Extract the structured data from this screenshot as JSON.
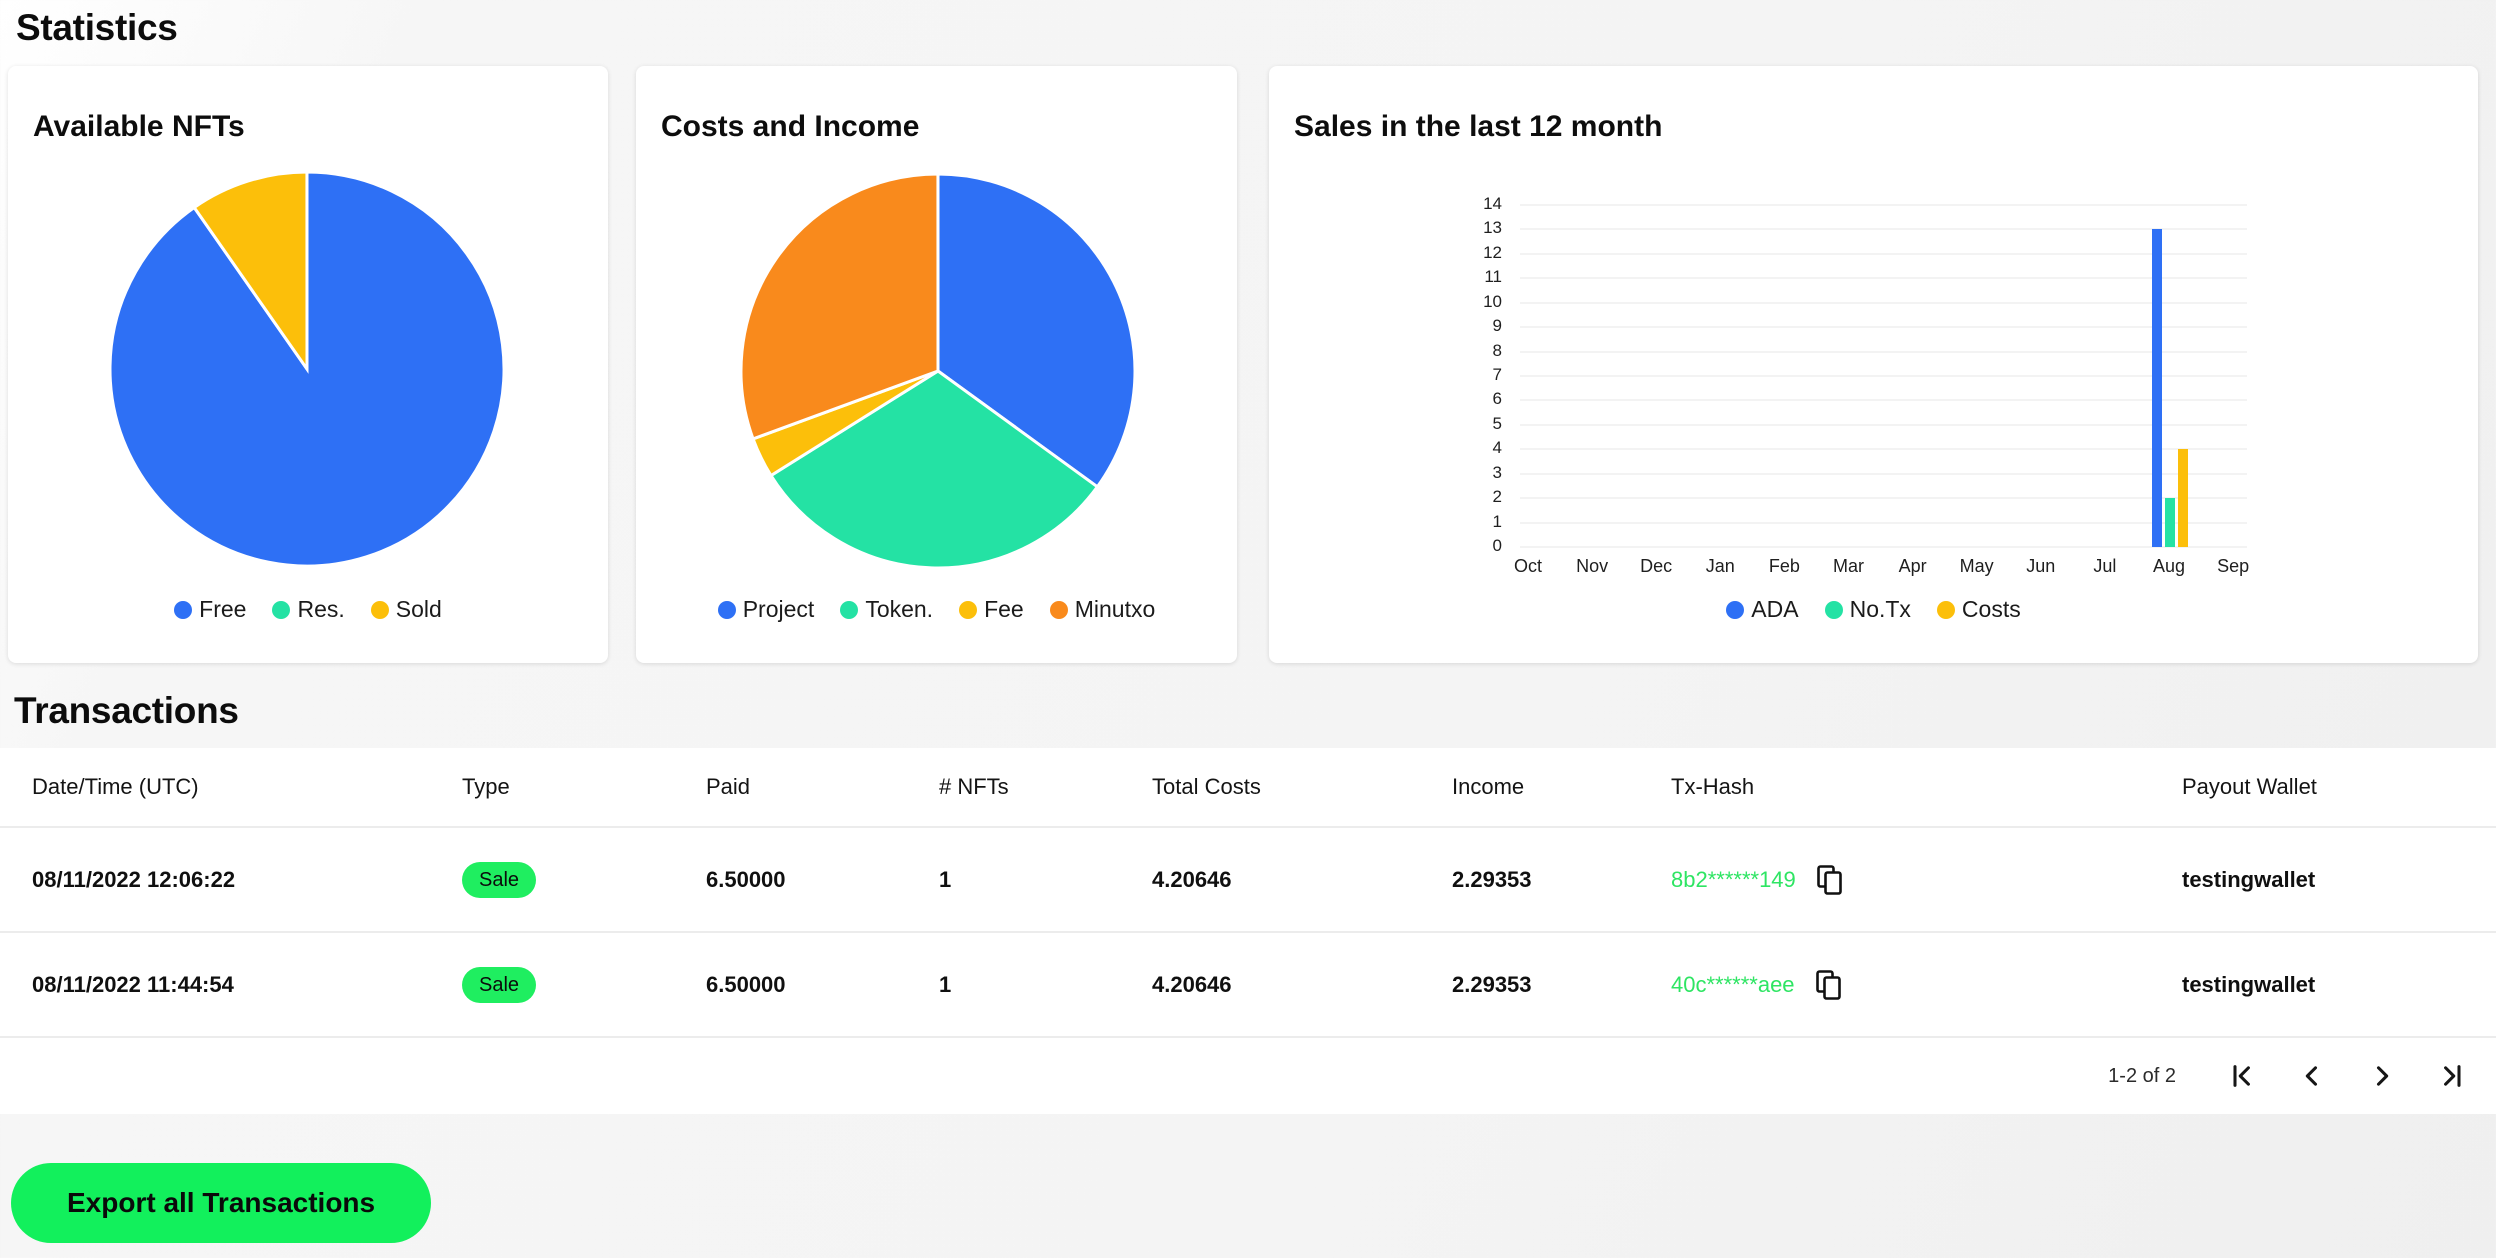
{
  "page": {
    "title": "Statistics",
    "transactions_title": "Transactions"
  },
  "chart_data": [
    {
      "type": "pie",
      "title": "Available NFTs",
      "labels": [
        "Free",
        "Res.",
        "Sold"
      ],
      "values": [
        90.3,
        0,
        9.7
      ],
      "unit": "percent-share",
      "colors": [
        "#2e70f5",
        "#24e2a4",
        "#fcbf0a"
      ],
      "legend_position": "bottom"
    },
    {
      "type": "pie",
      "title": "Costs and Income",
      "labels": [
        "Project",
        "Token.",
        "Fee",
        "Minutxo"
      ],
      "values": [
        35.0,
        31.1,
        3.3,
        30.6
      ],
      "unit": "percent-share",
      "colors": [
        "#2e70f5",
        "#24e2a4",
        "#fcbf0a",
        "#f98a1c"
      ],
      "legend_position": "bottom"
    },
    {
      "type": "bar",
      "title": "Sales in the last 12 month",
      "categories": [
        "Oct",
        "Nov",
        "Dec",
        "Jan",
        "Feb",
        "Mar",
        "Apr",
        "May",
        "Jun",
        "Jul",
        "Aug",
        "Sep"
      ],
      "series": [
        {
          "name": "ADA",
          "color": "#2e70f5",
          "values": [
            0,
            0,
            0,
            0,
            0,
            0,
            0,
            0,
            0,
            0,
            13,
            0
          ]
        },
        {
          "name": "No.Tx",
          "color": "#24e2a4",
          "values": [
            0,
            0,
            0,
            0,
            0,
            0,
            0,
            0,
            0,
            0,
            2,
            0
          ]
        },
        {
          "name": "Costs",
          "color": "#fcbf0a",
          "values": [
            0,
            0,
            0,
            0,
            0,
            0,
            0,
            0,
            0,
            0,
            4,
            0
          ]
        }
      ],
      "ylim": [
        0,
        14
      ],
      "ytick_step": 1,
      "grid": true,
      "legend_position": "bottom"
    }
  ],
  "table": {
    "headers": [
      "Date/Time (UTC)",
      "Type",
      "Paid",
      "# NFTs",
      "Total Costs",
      "Income",
      "Tx-Hash",
      "Payout Wallet"
    ],
    "rows": [
      {
        "datetime": "08/11/2022 12:06:22",
        "type": "Sale",
        "paid": "6.50000",
        "nfts": "1",
        "total_costs": "4.20646",
        "income": "2.29353",
        "tx_hash": "8b2******149",
        "payout_wallet": "testingwallet"
      },
      {
        "datetime": "08/11/2022 11:44:54",
        "type": "Sale",
        "paid": "6.50000",
        "nfts": "1",
        "total_costs": "4.20646",
        "income": "2.29353",
        "tx_hash": "40c******aee",
        "payout_wallet": "testingwallet"
      }
    ],
    "pagination": {
      "label": "1-2 of 2"
    }
  },
  "export_button": {
    "label": "Export all Transactions"
  },
  "colors": {
    "blue": "#2e70f5",
    "teal": "#24e2a4",
    "yellow": "#fcbf0a",
    "orange": "#f98a1c",
    "badge_green": "#1fee60",
    "link_green": "#2ee563",
    "button_green": "#12f05c",
    "grid_line": "#f3f3f3"
  }
}
